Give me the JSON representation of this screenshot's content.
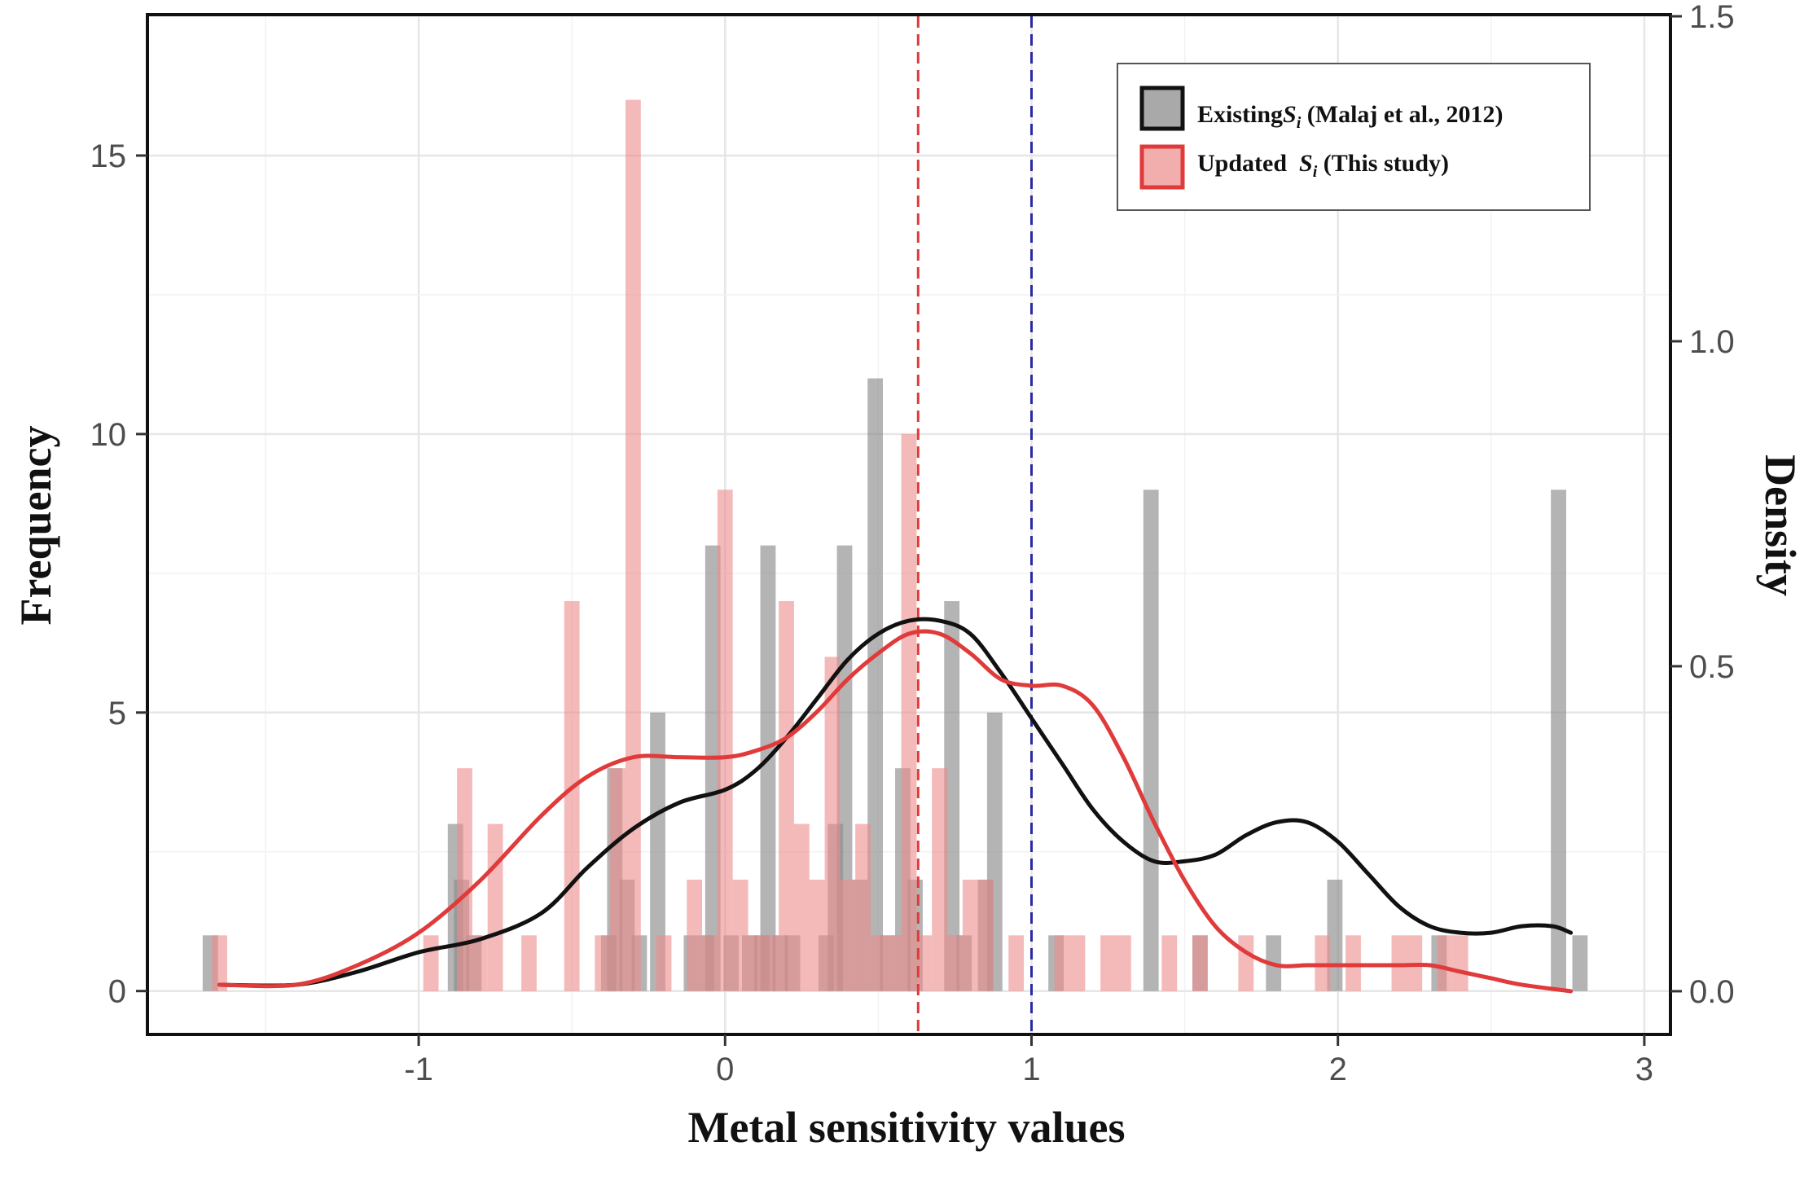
{
  "chart_data": {
    "type": "bar",
    "xlabel": "Metal sensitivity values",
    "ylabel": "Frequency",
    "y2label": "Density",
    "xlim": [
      -1.88,
      3.08
    ],
    "ylim": [
      -0.75,
      17.5
    ],
    "y2lim": [
      -0.064,
      1.5
    ],
    "x_ticks": [
      "-1",
      "0",
      "1",
      "2",
      "3"
    ],
    "x_tick_values": [
      -1,
      0,
      1,
      2,
      3
    ],
    "y_ticks": [
      "0",
      "5",
      "10",
      "15"
    ],
    "y_tick_values": [
      0,
      5,
      10,
      15
    ],
    "y2_ticks": [
      "0.0",
      "0.5",
      "1.0",
      "1.5"
    ],
    "y2_tick_values": [
      0,
      0.5,
      1.0,
      1.5
    ],
    "bin_width": 0.05,
    "grid": true,
    "legend_position": "top-right",
    "reference_lines": [
      {
        "x": 0.63,
        "color": "#e03a3a",
        "style": "dashed"
      },
      {
        "x": 1.0,
        "color": "#2a2aa0",
        "style": "dashed"
      }
    ],
    "series": [
      {
        "legend_main": "Existing",
        "legend_symbol": "S",
        "legend_sub": "i",
        "legend_rest": " (Malaj et al., 2012)",
        "fill": "#8c8c8c",
        "fill_opacity": 0.65,
        "line_color": "#111111",
        "bins": [
          [
            -1.68,
            1
          ],
          [
            -0.88,
            3
          ],
          [
            -0.86,
            2
          ],
          [
            -0.82,
            1
          ],
          [
            -0.38,
            1
          ],
          [
            -0.36,
            4
          ],
          [
            -0.32,
            2
          ],
          [
            -0.28,
            1
          ],
          [
            -0.22,
            5
          ],
          [
            -0.11,
            1
          ],
          [
            -0.06,
            1
          ],
          [
            -0.04,
            8
          ],
          [
            0.02,
            1
          ],
          [
            0.08,
            1
          ],
          [
            0.12,
            1
          ],
          [
            0.14,
            8
          ],
          [
            0.18,
            1
          ],
          [
            0.22,
            1
          ],
          [
            0.33,
            1
          ],
          [
            0.36,
            3
          ],
          [
            0.39,
            8
          ],
          [
            0.44,
            2
          ],
          [
            0.49,
            11
          ],
          [
            0.53,
            1
          ],
          [
            0.58,
            4
          ],
          [
            0.62,
            2
          ],
          [
            0.74,
            7
          ],
          [
            0.78,
            1
          ],
          [
            0.85,
            2
          ],
          [
            0.88,
            5
          ],
          [
            1.08,
            1
          ],
          [
            1.39,
            9
          ],
          [
            1.55,
            1
          ],
          [
            1.79,
            1
          ],
          [
            1.99,
            2
          ],
          [
            2.33,
            1
          ],
          [
            2.72,
            9
          ],
          [
            2.79,
            1
          ]
        ],
        "density": [
          [
            -1.65,
            0.01
          ],
          [
            -1.4,
            0.01
          ],
          [
            -1.2,
            0.03
          ],
          [
            -1.0,
            0.06
          ],
          [
            -0.8,
            0.08
          ],
          [
            -0.6,
            0.12
          ],
          [
            -0.45,
            0.19
          ],
          [
            -0.3,
            0.25
          ],
          [
            -0.15,
            0.29
          ],
          [
            0.0,
            0.31
          ],
          [
            0.1,
            0.34
          ],
          [
            0.2,
            0.39
          ],
          [
            0.3,
            0.45
          ],
          [
            0.4,
            0.51
          ],
          [
            0.5,
            0.55
          ],
          [
            0.6,
            0.57
          ],
          [
            0.7,
            0.57
          ],
          [
            0.8,
            0.55
          ],
          [
            0.9,
            0.49
          ],
          [
            1.0,
            0.42
          ],
          [
            1.1,
            0.35
          ],
          [
            1.2,
            0.28
          ],
          [
            1.3,
            0.23
          ],
          [
            1.4,
            0.2
          ],
          [
            1.5,
            0.2
          ],
          [
            1.6,
            0.21
          ],
          [
            1.7,
            0.24
          ],
          [
            1.8,
            0.26
          ],
          [
            1.9,
            0.26
          ],
          [
            2.0,
            0.23
          ],
          [
            2.1,
            0.18
          ],
          [
            2.2,
            0.13
          ],
          [
            2.3,
            0.1
          ],
          [
            2.4,
            0.09
          ],
          [
            2.5,
            0.09
          ],
          [
            2.6,
            0.1
          ],
          [
            2.7,
            0.1
          ],
          [
            2.76,
            0.09
          ]
        ]
      },
      {
        "legend_main": "Updated  ",
        "legend_symbol": "S",
        "legend_sub": "i",
        "legend_rest": " (This study)",
        "fill": "#ec8a8a",
        "fill_opacity": 0.6,
        "line_color": "#e03a3a",
        "bins": [
          [
            -1.65,
            1
          ],
          [
            -0.96,
            1
          ],
          [
            -0.85,
            4
          ],
          [
            -0.8,
            1
          ],
          [
            -0.75,
            3
          ],
          [
            -0.64,
            1
          ],
          [
            -0.5,
            7
          ],
          [
            -0.4,
            1
          ],
          [
            -0.35,
            4
          ],
          [
            -0.3,
            16
          ],
          [
            -0.2,
            1
          ],
          [
            -0.1,
            2
          ],
          [
            -0.05,
            1
          ],
          [
            0.0,
            9
          ],
          [
            0.05,
            2
          ],
          [
            0.1,
            1
          ],
          [
            0.15,
            1
          ],
          [
            0.2,
            7
          ],
          [
            0.25,
            3
          ],
          [
            0.3,
            2
          ],
          [
            0.35,
            6
          ],
          [
            0.4,
            2
          ],
          [
            0.45,
            3
          ],
          [
            0.5,
            1
          ],
          [
            0.55,
            1
          ],
          [
            0.6,
            10
          ],
          [
            0.65,
            1
          ],
          [
            0.7,
            4
          ],
          [
            0.75,
            1
          ],
          [
            0.8,
            2
          ],
          [
            0.85,
            2
          ],
          [
            0.95,
            1
          ],
          [
            1.1,
            1
          ],
          [
            1.15,
            1
          ],
          [
            1.25,
            1
          ],
          [
            1.3,
            1
          ],
          [
            1.45,
            1
          ],
          [
            1.55,
            1
          ],
          [
            1.7,
            1
          ],
          [
            1.95,
            1
          ],
          [
            2.05,
            1
          ],
          [
            2.2,
            1
          ],
          [
            2.25,
            1
          ],
          [
            2.35,
            1
          ],
          [
            2.4,
            1
          ]
        ],
        "density": [
          [
            -1.65,
            0.01
          ],
          [
            -1.4,
            0.01
          ],
          [
            -1.2,
            0.04
          ],
          [
            -1.0,
            0.09
          ],
          [
            -0.8,
            0.17
          ],
          [
            -0.6,
            0.27
          ],
          [
            -0.45,
            0.33
          ],
          [
            -0.3,
            0.36
          ],
          [
            -0.15,
            0.36
          ],
          [
            0.0,
            0.36
          ],
          [
            0.1,
            0.37
          ],
          [
            0.2,
            0.39
          ],
          [
            0.3,
            0.43
          ],
          [
            0.4,
            0.48
          ],
          [
            0.5,
            0.52
          ],
          [
            0.6,
            0.55
          ],
          [
            0.7,
            0.55
          ],
          [
            0.8,
            0.52
          ],
          [
            0.9,
            0.48
          ],
          [
            1.0,
            0.47
          ],
          [
            1.1,
            0.47
          ],
          [
            1.2,
            0.44
          ],
          [
            1.3,
            0.36
          ],
          [
            1.4,
            0.26
          ],
          [
            1.5,
            0.17
          ],
          [
            1.6,
            0.1
          ],
          [
            1.7,
            0.06
          ],
          [
            1.8,
            0.04
          ],
          [
            1.9,
            0.04
          ],
          [
            2.0,
            0.04
          ],
          [
            2.1,
            0.04
          ],
          [
            2.2,
            0.04
          ],
          [
            2.3,
            0.04
          ],
          [
            2.4,
            0.03
          ],
          [
            2.5,
            0.02
          ],
          [
            2.6,
            0.01
          ],
          [
            2.76,
            0.0
          ]
        ]
      }
    ]
  }
}
